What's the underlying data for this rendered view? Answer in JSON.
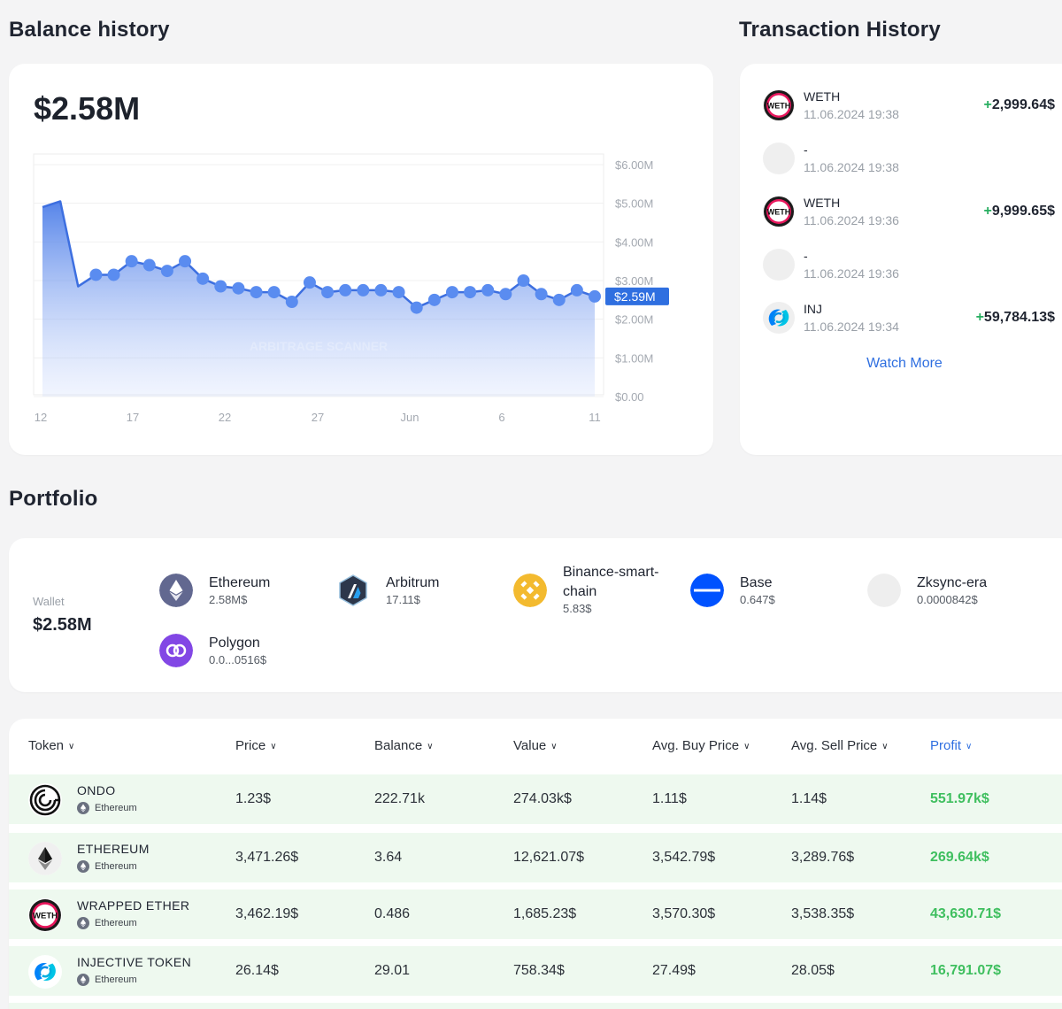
{
  "balance": {
    "section_title": "Balance history",
    "value": "$2.58M",
    "watermark": "ARBITRAGE SCANNER"
  },
  "chart_data": {
    "type": "area",
    "title": "",
    "xlabel": "",
    "ylabel": "",
    "x_tick_labels": [
      "12",
      "17",
      "22",
      "27",
      "Jun",
      "6",
      "11"
    ],
    "y_tick_labels": [
      "$6.00M",
      "$5.00M",
      "$4.00M",
      "$3.00M",
      "$2.00M",
      "$1.00M",
      "$0.00"
    ],
    "ylim": [
      0,
      6000000
    ],
    "current_label": "$2.59M",
    "series": [
      {
        "name": "Balance",
        "values": [
          4.9,
          5.05,
          2.85,
          3.15,
          3.15,
          3.5,
          3.4,
          3.25,
          3.5,
          3.05,
          2.85,
          2.8,
          2.7,
          2.7,
          2.45,
          2.95,
          2.7,
          2.75,
          2.75,
          2.75,
          2.7,
          2.3,
          2.5,
          2.7,
          2.7,
          2.75,
          2.65,
          3.0,
          2.65,
          2.5,
          2.75,
          2.59
        ],
        "markers": [
          false,
          false,
          false,
          true,
          true,
          true,
          true,
          true,
          true,
          true,
          true,
          true,
          true,
          true,
          true,
          true,
          true,
          true,
          true,
          true,
          true,
          true,
          true,
          true,
          true,
          true,
          true,
          true,
          true,
          true,
          true,
          true
        ]
      }
    ]
  },
  "transactions": {
    "section_title": "Transaction History",
    "items": [
      {
        "token": "WETH",
        "date": "11.06.2024 19:38",
        "sign": "+",
        "amount": "2,999.64$",
        "icon": "weth-icon"
      },
      {
        "token": "-",
        "date": "11.06.2024 19:38",
        "sign": "",
        "amount": "",
        "icon": "blank-icon"
      },
      {
        "token": "WETH",
        "date": "11.06.2024 19:36",
        "sign": "+",
        "amount": "9,999.65$",
        "icon": "weth-icon"
      },
      {
        "token": "-",
        "date": "11.06.2024 19:36",
        "sign": "",
        "amount": "",
        "icon": "blank-icon"
      },
      {
        "token": "INJ",
        "date": "11.06.2024 19:34",
        "sign": "+",
        "amount": "59,784.13$",
        "icon": "inj-icon"
      }
    ],
    "watch_more": "Watch More"
  },
  "portfolio": {
    "section_title": "Portfolio",
    "wallet_label": "Wallet",
    "wallet_value": "$2.58M",
    "chains": [
      {
        "name": "Ethereum",
        "value": "2.58M$",
        "icon": "ethereum-icon",
        "color": "#626890"
      },
      {
        "name": "Arbitrum",
        "value": "17.11$",
        "icon": "arbitrum-icon",
        "color": "#2d374b"
      },
      {
        "name": "Binance-smart-chain",
        "value": "5.83$",
        "icon": "bnb-icon",
        "color": "#f3ba2f"
      },
      {
        "name": "Base",
        "value": "0.647$",
        "icon": "base-icon",
        "color": "#0052ff"
      },
      {
        "name": "Zksync-era",
        "value": "0.0000842$",
        "icon": "zksync-icon",
        "color": "#eeeeee"
      },
      {
        "name": "Polygon",
        "value": "0.0...0516$",
        "icon": "polygon-icon",
        "color": "#8247e5"
      }
    ]
  },
  "tokens": {
    "headers": [
      "Token",
      "Price",
      "Balance",
      "Value",
      "Avg. Buy Price",
      "Avg. Sell Price",
      "Profit"
    ],
    "rows": [
      {
        "name": "ONDO",
        "chain": "Ethereum",
        "price": "1.23$",
        "balance": "222.71k",
        "value": "274.03k$",
        "avg_buy": "1.11$",
        "avg_sell": "1.14$",
        "profit": "551.97k$",
        "icon": "ondo-icon"
      },
      {
        "name": "ETHEREUM",
        "chain": "Ethereum",
        "price": "3,471.26$",
        "balance": "3.64",
        "value": "12,621.07$",
        "avg_buy": "3,542.79$",
        "avg_sell": "3,289.76$",
        "profit": "269.64k$",
        "icon": "eth-token-icon"
      },
      {
        "name": "WRAPPED ETHER",
        "chain": "Ethereum",
        "price": "3,462.19$",
        "balance": "0.486",
        "value": "1,685.23$",
        "avg_buy": "3,570.30$",
        "avg_sell": "3,538.35$",
        "profit": "43,630.71$",
        "icon": "weth-icon"
      },
      {
        "name": "INJECTIVE TOKEN",
        "chain": "Ethereum",
        "price": "26.14$",
        "balance": "29.01",
        "value": "758.34$",
        "avg_buy": "27.49$",
        "avg_sell": "28.05$",
        "profit": "16,791.07$",
        "icon": "inj-icon"
      }
    ]
  }
}
